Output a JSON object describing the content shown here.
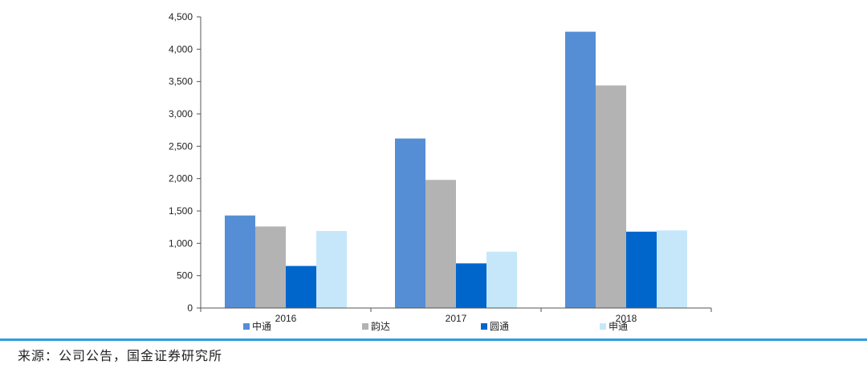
{
  "chart_data": {
    "type": "bar",
    "categories": [
      "2016",
      "2017",
      "2018"
    ],
    "series": [
      {
        "name": "中通",
        "color": "#558ed5",
        "values": [
          1430,
          2620,
          4270
        ]
      },
      {
        "name": "韵达",
        "color": "#b3b3b3",
        "values": [
          1260,
          1980,
          3440
        ]
      },
      {
        "name": "圆通",
        "color": "#0066cc",
        "values": [
          650,
          690,
          1180
        ]
      },
      {
        "name": "申通",
        "color": "#c6e7fa",
        "values": [
          1190,
          870,
          1200
        ]
      }
    ],
    "ylim": [
      0,
      4500
    ],
    "yticks": [
      "0",
      "500",
      "1,000",
      "1,500",
      "2,000",
      "2,500",
      "3,000",
      "3,500",
      "4,000",
      "4,500"
    ],
    "legend_position": "bottom",
    "grid": false
  },
  "footer": {
    "source": "来源：公司公告，国金证券研究所"
  }
}
